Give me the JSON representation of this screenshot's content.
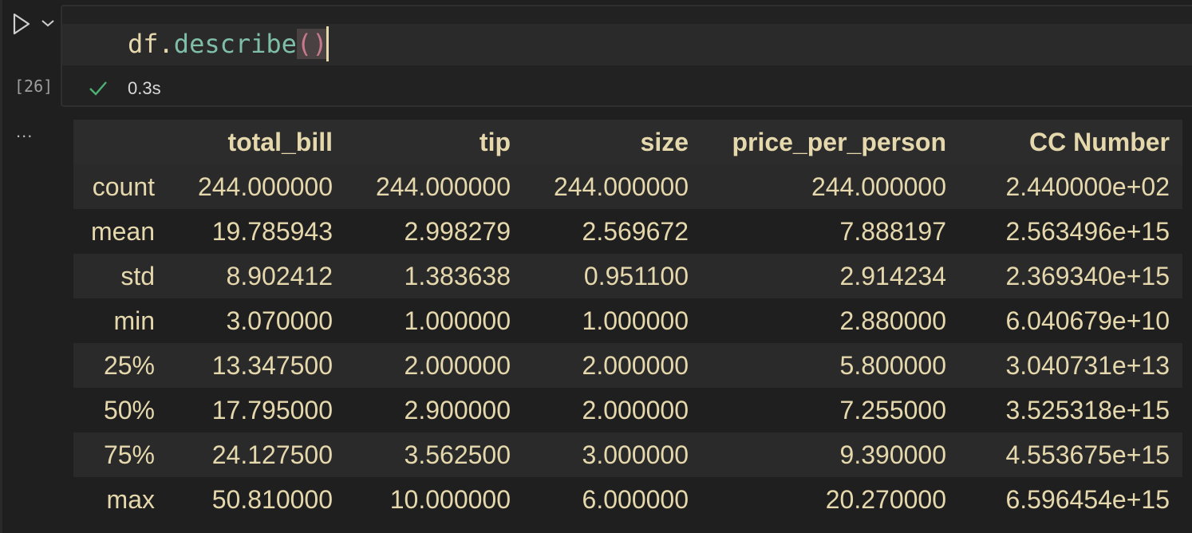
{
  "cell": {
    "code": {
      "var": "df",
      "dot": ".",
      "fn": "describe",
      "open_paren": "(",
      "close_paren": ")"
    },
    "execution_count": "[26]",
    "status_icon": "check-icon",
    "exec_time": "0.3s",
    "output_more": "..."
  },
  "colors": {
    "background": "#1f1f1f",
    "text": "#e6d8ad",
    "function": "#7fbfa8",
    "paren": "#c77a8c",
    "success": "#4caf73"
  },
  "table": {
    "columns": [
      "",
      "total_bill",
      "tip",
      "size",
      "price_per_person",
      "CC Number"
    ],
    "rows": [
      [
        "count",
        "244.000000",
        "244.000000",
        "244.000000",
        "244.000000",
        "2.440000e+02"
      ],
      [
        "mean",
        "19.785943",
        "2.998279",
        "2.569672",
        "7.888197",
        "2.563496e+15"
      ],
      [
        "std",
        "8.902412",
        "1.383638",
        "0.951100",
        "2.914234",
        "2.369340e+15"
      ],
      [
        "min",
        "3.070000",
        "1.000000",
        "1.000000",
        "2.880000",
        "6.040679e+10"
      ],
      [
        "25%",
        "13.347500",
        "2.000000",
        "2.000000",
        "5.800000",
        "3.040731e+13"
      ],
      [
        "50%",
        "17.795000",
        "2.900000",
        "2.000000",
        "7.255000",
        "3.525318e+15"
      ],
      [
        "75%",
        "24.127500",
        "3.562500",
        "3.000000",
        "9.390000",
        "4.553675e+15"
      ],
      [
        "max",
        "50.810000",
        "10.000000",
        "6.000000",
        "20.270000",
        "6.596454e+15"
      ]
    ]
  }
}
